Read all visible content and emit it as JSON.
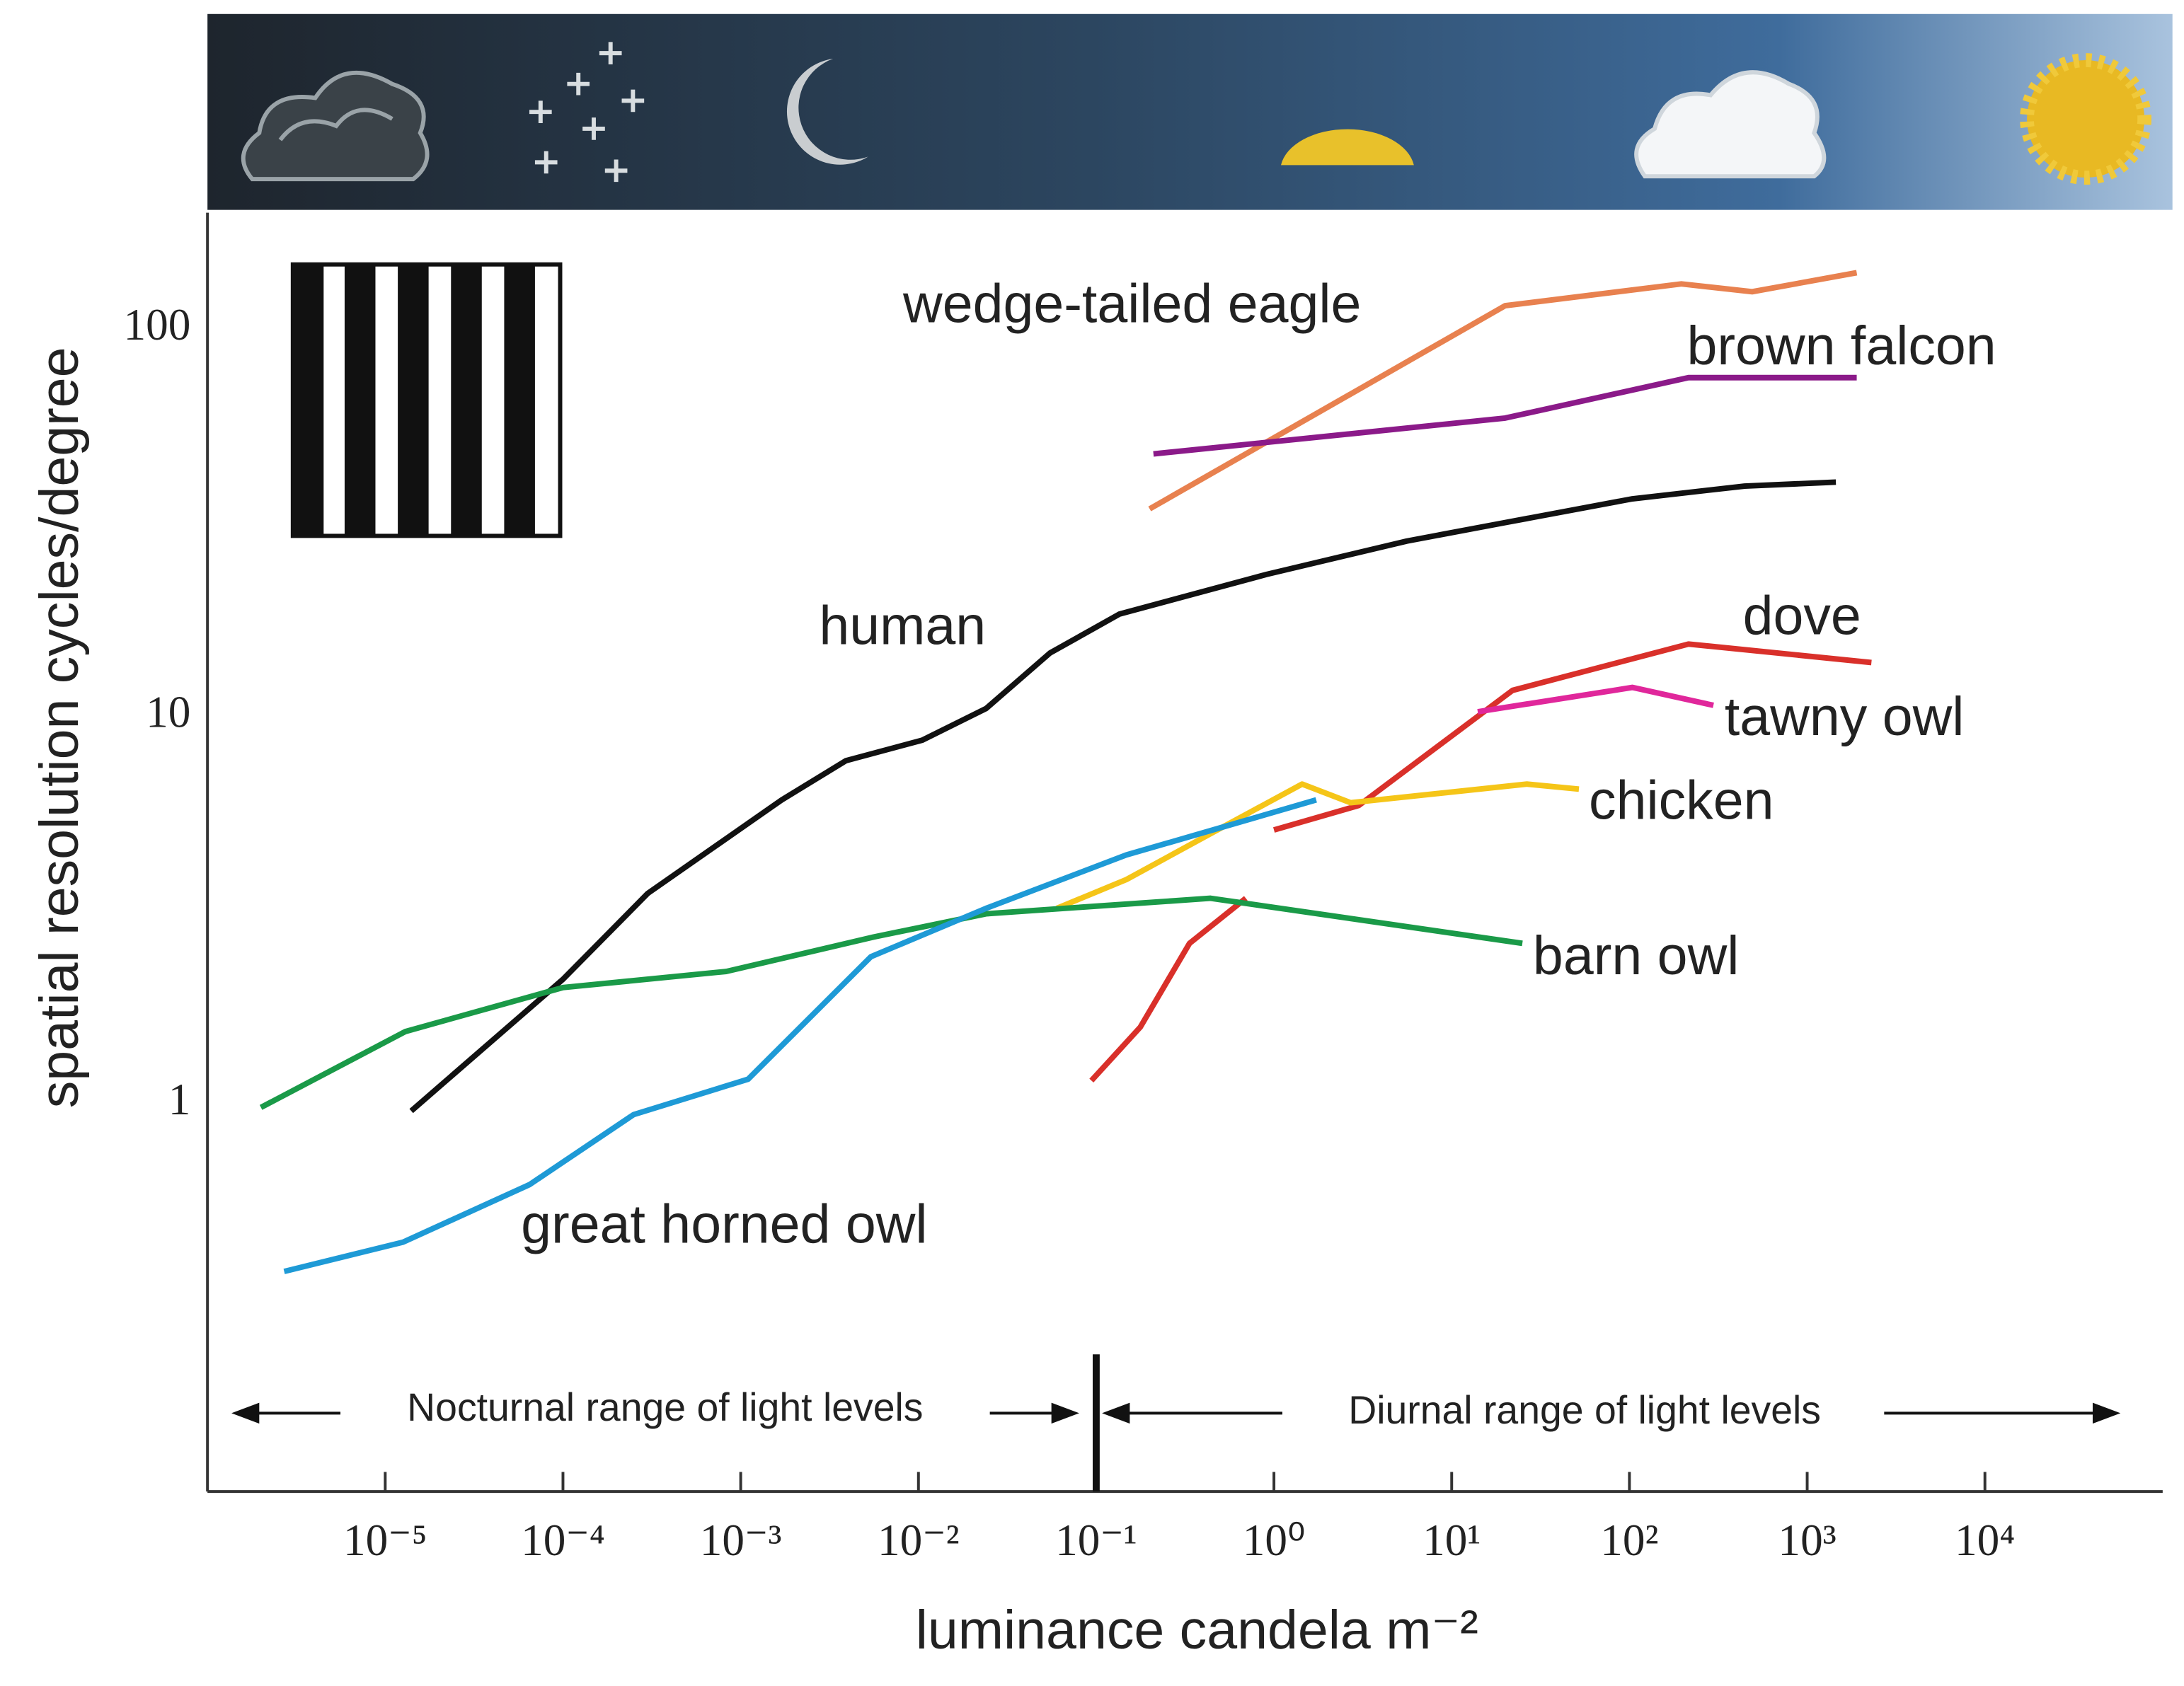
{
  "chart_data": {
    "type": "line",
    "x_label": "luminance candela m⁻²",
    "y_label": "spatial resolution cycles/degree",
    "xscale": "log",
    "yscale": "log",
    "xlim": [
      1e-06,
      100000
    ],
    "ylim": [
      0.1,
      200
    ],
    "xticks": [
      {
        "value": 1e-05,
        "label": "10⁻⁵"
      },
      {
        "value": 0.0001,
        "label": "10⁻⁴"
      },
      {
        "value": 0.001,
        "label": "10⁻³"
      },
      {
        "value": 0.01,
        "label": "10⁻²"
      },
      {
        "value": 0.1,
        "label": "10⁻¹"
      },
      {
        "value": 1,
        "label": "10⁰"
      },
      {
        "value": 10,
        "label": "10¹"
      },
      {
        "value": 100,
        "label": "10²"
      },
      {
        "value": 1000,
        "label": "10³"
      },
      {
        "value": 10000,
        "label": "10⁴"
      }
    ],
    "yticks": [
      1,
      10,
      100
    ],
    "divider_x": 0.1,
    "annotations": [
      "Nocturnal range of light levels",
      "Diurnal range of light levels"
    ],
    "series": [
      {
        "name": "wedge-tailed eagle",
        "color": "#e8814f",
        "x": [
          0.2,
          20,
          196,
          490,
          1900
        ],
        "values": [
          34.4,
          115,
          131,
          125,
          140
        ]
      },
      {
        "name": "brown falcon",
        "color": "#8b1a89",
        "x": [
          0.21,
          20,
          215,
          1900
        ],
        "values": [
          47.7,
          59,
          75,
          75
        ]
      },
      {
        "name": "human",
        "color": "#111111",
        "x": [
          1.4e-05,
          0.0001,
          0.0003,
          0.0017,
          0.0039,
          0.0105,
          0.024,
          0.055,
          0.135,
          0.91,
          5.6,
          20,
          104,
          445,
          1450
        ],
        "values": [
          0.96,
          2.1,
          3.5,
          6.1,
          7.7,
          8.7,
          10.5,
          14.6,
          18.4,
          23.3,
          28.4,
          31.7,
          36.5,
          39.4,
          40.3
        ]
      },
      {
        "name": "dove",
        "color": "#d9302a",
        "x": [
          0.094,
          0.177,
          0.335,
          0.695,
          0.8,
          1,
          3,
          22,
          215,
          2300
        ],
        "values": [
          1.15,
          1.58,
          2.6,
          3.4,
          null,
          5.1,
          5.9,
          11.7,
          15.4,
          13.8
        ]
      },
      {
        "name": "tawny owl",
        "color": "#e0279b",
        "x": [
          14,
          104,
          297
        ],
        "values": [
          10.3,
          11.9,
          10.7
        ]
      },
      {
        "name": "chicken",
        "color": "#f5c518",
        "x": [
          0.06,
          0.148,
          0.48,
          1.44,
          2.7,
          26.5,
          52
        ],
        "values": [
          3.2,
          3.8,
          5.1,
          6.7,
          6.0,
          6.7,
          6.5
        ]
      },
      {
        "name": "barn owl",
        "color": "#1a9a48",
        "x": [
          2e-06,
          1.3e-05,
          0.0001,
          0.00083,
          0.0056,
          0.024,
          0.44,
          25
        ],
        "values": [
          0.98,
          1.54,
          2.0,
          2.2,
          2.7,
          3.1,
          3.4,
          2.6
        ]
      },
      {
        "name": "great horned owl",
        "color": "#1e9ad6",
        "x": [
          2.7e-06,
          1.26e-05,
          6.5e-05,
          0.00025,
          0.0011,
          0.0054,
          0.024,
          0.148,
          0.335,
          1.73
        ],
        "values": [
          0.37,
          0.44,
          0.62,
          0.94,
          1.16,
          2.4,
          3.2,
          4.4,
          4.9,
          6.1
        ]
      }
    ]
  }
}
